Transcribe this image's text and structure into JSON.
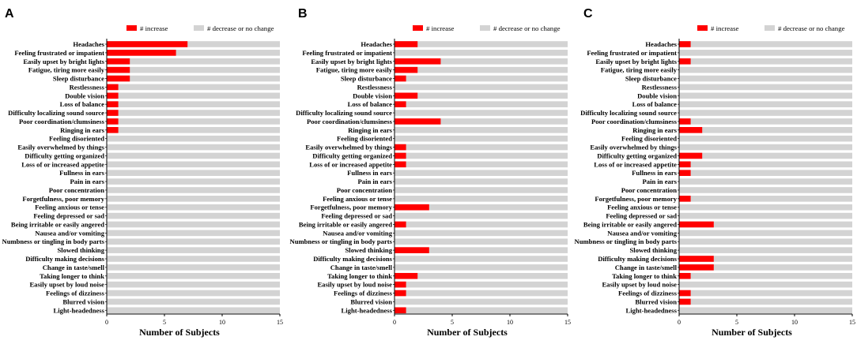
{
  "chart_data": {
    "type": "bar",
    "orientation": "horizontal",
    "stacked": true,
    "xlabel": "Number of Subjects",
    "xlim": [
      0,
      15
    ],
    "xticks": [
      0,
      5,
      10,
      15
    ],
    "total_subjects": 15,
    "legend": [
      "# increase",
      "# decrease or no change"
    ],
    "colors": {
      "increase": "#ff0000",
      "decrease": "#d3d3d3"
    },
    "categories": [
      "Headaches",
      "Feeling frustrated or impatient",
      "Easily upset by bright lights",
      "Fatigue, tiring more easily",
      "Sleep disturbance",
      "Restlessness",
      "Double vision",
      "Loss of balance",
      "Difficulty localizing sound source",
      "Poor coordination/clumsiness",
      "Ringing in ears",
      "Feeling disoriented",
      "Easily overwhelmed by things",
      "Difficulty getting organized",
      "Loss of or increased appetite",
      "Fullness in ears",
      "Pain in ears",
      "Poor concentration",
      "Feeling anxious or tense",
      "Forgetfulness, poor memory",
      "Feeling depressed or sad",
      "Being irritable or easily angered",
      "Nausea and/or vomiting",
      "Numbness or tingling in body parts",
      "Slowed thinking",
      "Difficulty making decisions",
      "Change in taste/smell",
      "Taking longer to think",
      "Easily upset by loud noise",
      "Feelings of dizziness",
      "Blurred vision",
      "Light-headedness"
    ],
    "panels": [
      {
        "label": "A",
        "categories": [
          "Headaches",
          "Feeling frustrated or impatient",
          "Easily upset by bright lights",
          "Fatigue, tiring more easily",
          "Sleep disturbance",
          "Restlessness",
          "Double vision",
          "Loss of balance",
          "Difficulty localizing sound source",
          "Poor coordination/clumsiness",
          "Ringing in ears",
          "Feeling disoriented",
          "Easily overwhelmed by things",
          "Difficulty getting organized",
          "Loss of or increased appetite",
          "Fullness in ears",
          "Pain in ears",
          "Poor concentration",
          "Forgetfulness, poor memory",
          "Feeling anxious or tense",
          "Feeling depressed or sad",
          "Being irritable or easily angered",
          "Nausea and/or vomiting",
          "Numbness or tingling in body parts",
          "Slowed thinking",
          "Difficulty making decisions",
          "Change in taste/smell",
          "Taking longer to think",
          "Easily upset by loud noise",
          "Feelings of dizziness",
          "Blurred vision",
          "Light-headedness"
        ],
        "increase": [
          7,
          6,
          2,
          2,
          2,
          1,
          1,
          1,
          1,
          1,
          1,
          0,
          0,
          0,
          0,
          0,
          0,
          0,
          0,
          0,
          0,
          0,
          0,
          0,
          0,
          0,
          0,
          0,
          0,
          0,
          0,
          0
        ]
      },
      {
        "label": "B",
        "categories": [
          "Headaches",
          "Feeling frustrated or impatient",
          "Easily upset by bright lights",
          "Fatigue, tiring more easily",
          "Sleep disturbance",
          "Restlessness",
          "Double vision",
          "Loss of balance",
          "Difficulty localizing sound source",
          "Poor coordination/clumsiness",
          "Ringing in ears",
          "Feeling disoriented",
          "Easily overwhelmed by things",
          "Difficulty getting organized",
          "Loss of or increased appetite",
          "Fullness in ears",
          "Pain in ears",
          "Poor concentration",
          "Feeling anxious or tense",
          "Forgetfulness, poor memory",
          "Feeling depressed or sad",
          "Being irritable or easily angered",
          "Nausea and/or vomiting",
          "Numbness or tingling in body parts",
          "Slowed thinking",
          "Difficulty making decisions",
          "Change in taste/smell",
          "Taking longer to think",
          "Easily upset by loud noise",
          "Feelings of dizziness",
          "Blurred vision",
          "Light-headedness"
        ],
        "increase": [
          2,
          0,
          4,
          2,
          1,
          0,
          2,
          1,
          0,
          4,
          0,
          0,
          1,
          1,
          1,
          0,
          0,
          0,
          0,
          3,
          0,
          1,
          0,
          0,
          3,
          0,
          0,
          2,
          1,
          1,
          0,
          1
        ]
      },
      {
        "label": "C",
        "categories": [
          "Headaches",
          "Feeling frustrated or impatient",
          "Easily upset by bright lights",
          "Fatigue, tiring more easily",
          "Sleep disturbance",
          "Restlessness",
          "Double vision",
          "Loss of balance",
          "Difficulty localizing sound source",
          "Poor coordination/clumsiness",
          "Ringing in ears",
          "Feeling disoriented",
          "Easily overwhelmed by things",
          "Difficulty getting organized",
          "Loss of or increased appetite",
          "Fullness in ears",
          "Pain in ears",
          "Poor concentration",
          "Forgetfulness, poor memory",
          "Feeling anxious or tense",
          "Feeling depressed or sad",
          "Being irritable or easily angered",
          "Nausea and/or vomiting",
          "Numbness or tingling in body parts",
          "Slowed thinking",
          "Difficulty making decisions",
          "Change in taste/smell",
          "Taking longer to think",
          "Easily upset by loud noise",
          "Feelings of dizziness",
          "Blurred vision",
          "Light-headedness"
        ],
        "increase": [
          1,
          0,
          1,
          0,
          0,
          0,
          0,
          0,
          0,
          1,
          2,
          0,
          0,
          2,
          1,
          1,
          0,
          0,
          1,
          0,
          0,
          3,
          0,
          0,
          0,
          3,
          3,
          1,
          0,
          1,
          1,
          0
        ]
      }
    ]
  }
}
